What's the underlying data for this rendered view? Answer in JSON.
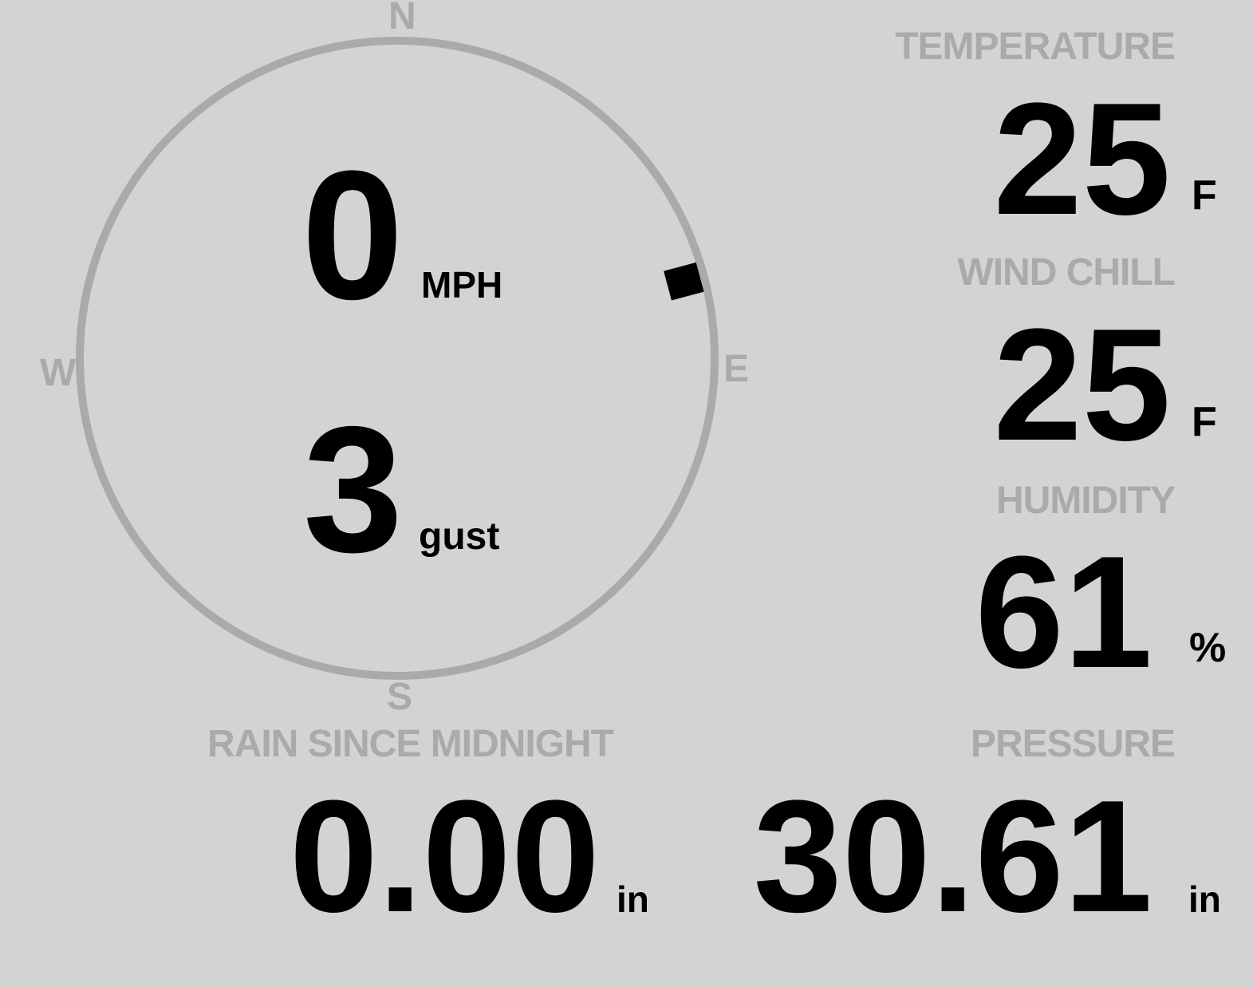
{
  "colors": {
    "background": "#d3d3d3",
    "label": "#aaaaaa",
    "value": "#000000",
    "ring": "#aaaaaa"
  },
  "compass": {
    "cardinals": {
      "n": "N",
      "s": "S",
      "e": "E",
      "w": "W"
    },
    "wind_direction_deg": 75,
    "speed": {
      "value": "0",
      "unit": "MPH"
    },
    "gust": {
      "value": "3",
      "unit": "gust"
    }
  },
  "temperature": {
    "label": "TEMPERATURE",
    "value": "25",
    "unit": "F"
  },
  "wind_chill": {
    "label": "WIND CHILL",
    "value": "25",
    "unit": "F"
  },
  "humidity": {
    "label": "HUMIDITY",
    "value": "61",
    "unit": "%"
  },
  "rain": {
    "label": "RAIN SINCE MIDNIGHT",
    "value": "0.00",
    "unit": "in"
  },
  "pressure": {
    "label": "PRESSURE",
    "value": "30.61",
    "unit": "in"
  }
}
